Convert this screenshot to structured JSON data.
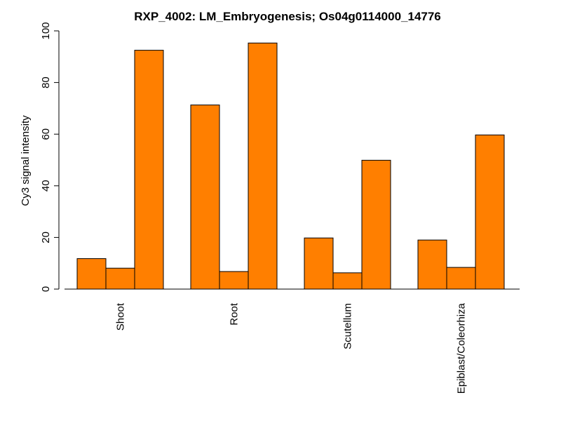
{
  "chart_data": {
    "type": "bar",
    "title": "RXP_4002: LM_Embryogenesis; Os04g0114000_14776",
    "xlabel": "",
    "ylabel": "Cy3 signal intensity",
    "ylim": [
      0,
      100
    ],
    "yticks": [
      0,
      20,
      40,
      60,
      80,
      100
    ],
    "categories": [
      "Shoot",
      "Root",
      "Scutellum",
      "Epiblast/Coleorhiza"
    ],
    "bar_color": "#FF7F00",
    "series": [
      {
        "values": [
          11.8,
          71.3,
          19.8,
          19.0
        ]
      },
      {
        "values": [
          8.1,
          6.8,
          6.3,
          8.4
        ]
      },
      {
        "values": [
          92.5,
          95.3,
          49.9,
          59.7
        ]
      }
    ],
    "grid": false,
    "legend": "none"
  }
}
